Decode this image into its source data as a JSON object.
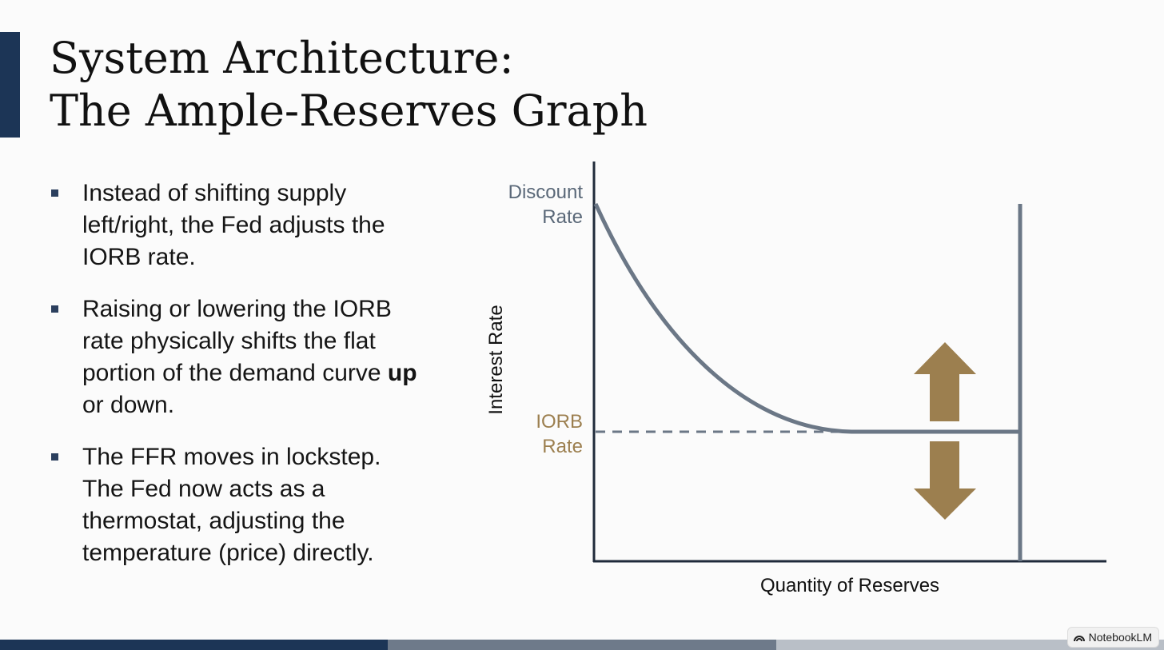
{
  "title": [
    "System Architecture:",
    "The Ample-Reserves Graph"
  ],
  "bullets": [
    [
      "Instead of shifting supply left/right, the Fed adjusts the IORB rate."
    ],
    [
      "Raising or lowering the IORB rate physically shifts the flat portion of the demand curve ",
      "up",
      " or down."
    ],
    [
      "The FFR moves in lockstep. The Fed now acts as a thermostat, adjusting the temperature (price) directly."
    ]
  ],
  "diagram": {
    "y_axis_label": "Interest Rate",
    "x_axis_label": "Quantity of Reserves",
    "discount_rate_label": [
      "Discount",
      "Rate"
    ],
    "iorb_rate_label": [
      "IORB",
      "Rate"
    ]
  },
  "watermark": "NotebookLM"
}
